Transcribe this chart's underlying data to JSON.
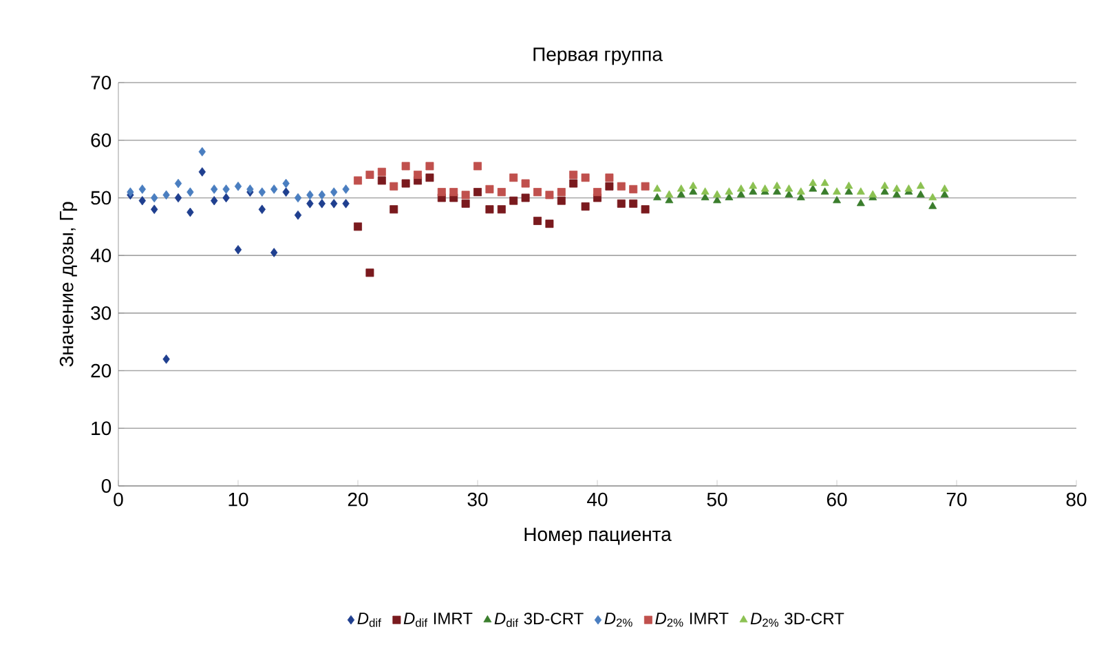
{
  "chart_data": {
    "type": "scatter",
    "title": "Первая группа",
    "xlabel": "Номер пациента",
    "ylabel": "Значение дозы, Гр",
    "xlim": [
      0,
      80
    ],
    "ylim": [
      0,
      70
    ],
    "xticks": [
      0,
      10,
      20,
      30,
      40,
      50,
      60,
      70,
      80
    ],
    "yticks": [
      0,
      10,
      20,
      30,
      40,
      50,
      60,
      70
    ],
    "grid": "y",
    "legend": "bottom",
    "series": [
      {
        "name": "*D*$_{dif}$",
        "color": "#1f3f8f",
        "marker": "diamond",
        "x": [
          1,
          2,
          3,
          4,
          5,
          6,
          7,
          8,
          9,
          10,
          11,
          12,
          13,
          14,
          15,
          16,
          17,
          18,
          19
        ],
        "values": [
          50.5,
          49.5,
          48,
          22,
          50,
          47.5,
          54.5,
          49.5,
          50,
          41,
          51,
          48,
          40.5,
          51,
          47,
          49,
          49,
          49,
          49
        ]
      },
      {
        "name": "*D*$_{dif}$ IMRT",
        "color": "#7a1a1e",
        "marker": "square",
        "x": [
          20,
          21,
          22,
          23,
          24,
          25,
          26,
          27,
          28,
          29,
          30,
          31,
          32,
          33,
          34,
          35,
          36,
          37,
          38,
          39,
          40,
          41,
          42,
          43,
          44
        ],
        "values": [
          45,
          37,
          53,
          48,
          52.5,
          53,
          53.5,
          50,
          50,
          49,
          51,
          48,
          48,
          49.5,
          50,
          46,
          45.5,
          49.5,
          52.5,
          48.5,
          50,
          52,
          49,
          49,
          48
        ]
      },
      {
        "name": "*D*$_{dif}$ 3D-CRT",
        "color": "#3a7d2c",
        "marker": "triangle",
        "x": [
          45,
          46,
          47,
          48,
          49,
          50,
          51,
          52,
          53,
          54,
          55,
          56,
          57,
          58,
          59,
          60,
          61,
          62,
          63,
          64,
          65,
          66,
          67,
          68,
          69
        ],
        "values": [
          50,
          49.5,
          50.5,
          51,
          50,
          49.5,
          50,
          50.5,
          51,
          51,
          51,
          50.5,
          50,
          51.5,
          51,
          49.5,
          51,
          49,
          50,
          51,
          50.5,
          51,
          50.5,
          48.5,
          50.5
        ]
      },
      {
        "name": "*D*$_{2%}$",
        "color": "#4a7ec0",
        "marker": "diamond",
        "x": [
          1,
          2,
          3,
          4,
          5,
          6,
          7,
          8,
          9,
          10,
          11,
          12,
          13,
          14,
          15,
          16,
          17,
          18,
          19
        ],
        "values": [
          51,
          51.5,
          50,
          50.5,
          52.5,
          51,
          58,
          51.5,
          51.5,
          52,
          51.5,
          51,
          51.5,
          52.5,
          50,
          50.5,
          50.5,
          51,
          51.5
        ]
      },
      {
        "name": "*D*$_{2%}$ IMRT",
        "color": "#c0504d",
        "marker": "square",
        "x": [
          20,
          21,
          22,
          23,
          24,
          25,
          26,
          27,
          28,
          29,
          30,
          31,
          32,
          33,
          34,
          35,
          36,
          37,
          38,
          39,
          40,
          41,
          42,
          43,
          44
        ],
        "values": [
          53,
          54,
          54.5,
          52,
          55.5,
          54,
          55.5,
          51,
          51,
          50.5,
          55.5,
          51.5,
          51,
          53.5,
          52.5,
          51,
          50.5,
          51,
          54,
          53.5,
          51,
          53.5,
          52,
          51.5,
          52
        ]
      },
      {
        "name": "*D*$_{2%}$ 3D-CRT",
        "color": "#8cc152",
        "marker": "triangle",
        "x": [
          45,
          46,
          47,
          48,
          49,
          50,
          51,
          52,
          53,
          54,
          55,
          56,
          57,
          58,
          59,
          60,
          61,
          62,
          63,
          64,
          65,
          66,
          67,
          68,
          69
        ],
        "values": [
          51.5,
          50.5,
          51.5,
          52,
          51,
          50.5,
          51,
          51.5,
          52,
          51.5,
          52,
          51.5,
          51,
          52.5,
          52.5,
          51,
          52,
          51,
          50.5,
          52,
          51.5,
          51.5,
          52,
          50,
          51.5
        ]
      }
    ]
  }
}
